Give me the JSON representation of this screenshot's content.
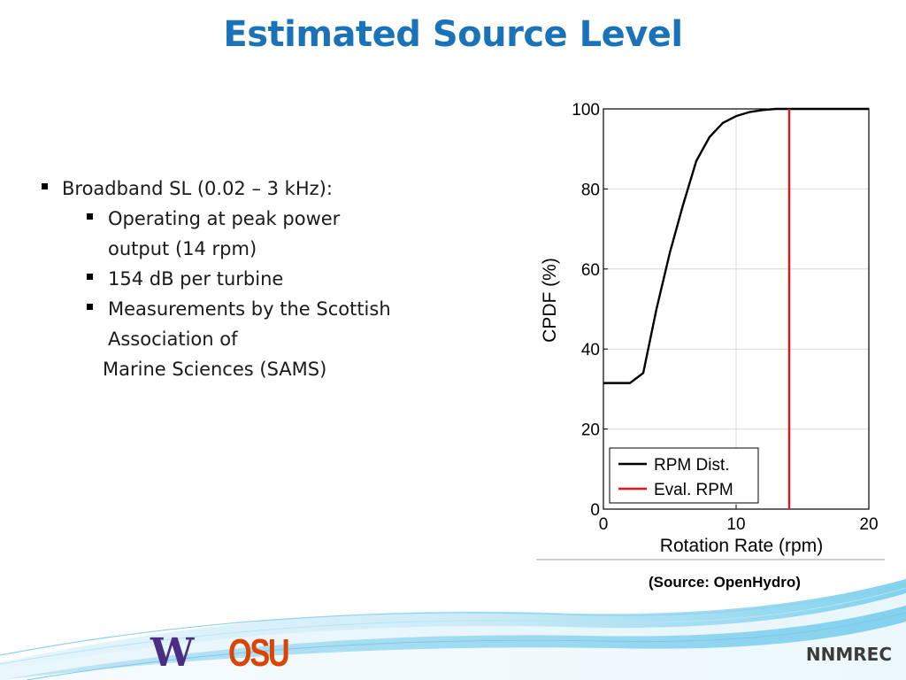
{
  "slide": {
    "title": "Estimated Source Level",
    "bullets": {
      "main": "Broadband SL (0.02 – 3 kHz):",
      "sub": [
        {
          "line1": "Operating at peak power",
          "line2": "output (14 rpm)"
        },
        {
          "line1": "154 dB per turbine",
          "line2": ""
        },
        {
          "line1": "Measurements by the Scottish",
          "line2": "Association of"
        }
      ],
      "continuation": "Marine Sciences (SAMS)"
    },
    "source_caption": "(Source: OpenHydro)",
    "footer": {
      "logo_uw": "W",
      "logo_osu": "OSU",
      "org": "NNMREC"
    }
  },
  "chart_data": {
    "type": "line",
    "xlabel": "Rotation Rate (rpm)",
    "ylabel": "CPDF (%)",
    "xlim": [
      0,
      20
    ],
    "ylim": [
      0,
      100
    ],
    "xticks": [
      0,
      10,
      20
    ],
    "yticks": [
      0,
      20,
      40,
      60,
      80,
      100
    ],
    "grid": true,
    "legend_position": "bottom-left",
    "series": [
      {
        "name": "RPM Dist.",
        "color": "#000000",
        "x": [
          0,
          1,
          2,
          3,
          4,
          5,
          6,
          7,
          8,
          9,
          10,
          11,
          12,
          13,
          14,
          20
        ],
        "y": [
          31.5,
          31.5,
          31.5,
          34,
          50,
          64,
          76,
          87,
          93,
          96.5,
          98.2,
          99.2,
          99.7,
          100,
          100,
          100
        ]
      },
      {
        "name": "Eval. RPM",
        "color": "#e0141e",
        "x": [
          14,
          14
        ],
        "y": [
          0,
          100
        ]
      }
    ]
  }
}
